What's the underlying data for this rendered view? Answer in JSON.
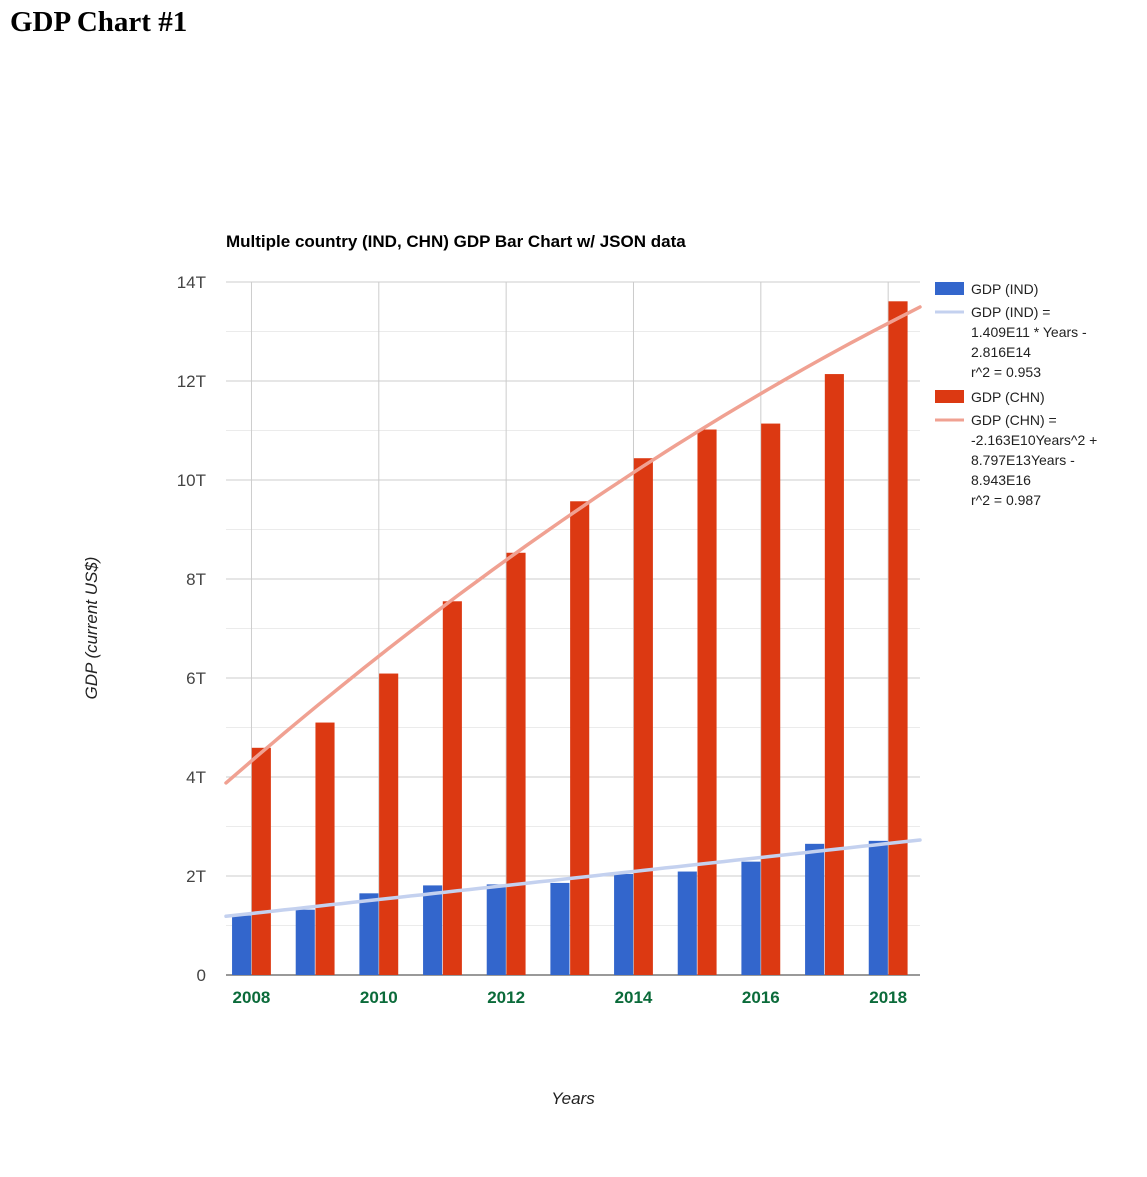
{
  "page": {
    "heading": "GDP Chart #1"
  },
  "chart_data": {
    "type": "bar",
    "title": "Multiple country (IND, CHN) GDP Bar Chart w/ JSON data",
    "xlabel": "Years",
    "ylabel": "GDP (current US$)",
    "x": [
      2008,
      2009,
      2010,
      2011,
      2012,
      2013,
      2014,
      2015,
      2016,
      2017,
      2018
    ],
    "xlim": [
      2007.6,
      2018.5
    ],
    "ylim": [
      0,
      14000000000000
    ],
    "y_ticks": [
      {
        "value": 0,
        "label": "0"
      },
      {
        "value": 2000000000000,
        "label": "2T"
      },
      {
        "value": 4000000000000,
        "label": "4T"
      },
      {
        "value": 6000000000000,
        "label": "6T"
      },
      {
        "value": 8000000000000,
        "label": "8T"
      },
      {
        "value": 10000000000000,
        "label": "10T"
      },
      {
        "value": 12000000000000,
        "label": "12T"
      },
      {
        "value": 14000000000000,
        "label": "14T"
      }
    ],
    "x_ticks": [
      {
        "value": 2008,
        "label": "2008"
      },
      {
        "value": 2010,
        "label": "2010"
      },
      {
        "value": 2012,
        "label": "2012"
      },
      {
        "value": 2014,
        "label": "2014"
      },
      {
        "value": 2016,
        "label": "2016"
      },
      {
        "value": 2018,
        "label": "2018"
      }
    ],
    "grid": true,
    "legend_position": "right",
    "series": [
      {
        "name": "GDP (IND)",
        "color": "#3366cc",
        "values": [
          1200000000000,
          1320000000000,
          1650000000000,
          1810000000000,
          1830000000000,
          1860000000000,
          2040000000000,
          2090000000000,
          2290000000000,
          2650000000000,
          2710000000000
        ],
        "trendline": {
          "kind": "linear",
          "color": "#c4d1ef",
          "label_lines": [
            "GDP (IND) =",
            "1.409E11 * Years -",
            "2.816E14",
            "r^2 = 0.953"
          ]
        }
      },
      {
        "name": "GDP (CHN)",
        "color": "#dc3912",
        "values": [
          4590000000000,
          5100000000000,
          6090000000000,
          7550000000000,
          8530000000000,
          9570000000000,
          10440000000000,
          11020000000000,
          11140000000000,
          12140000000000,
          13610000000000
        ],
        "trendline": {
          "kind": "quadratic",
          "color": "#f0a192",
          "label_lines": [
            "GDP (CHN) =",
            "-2.163E10Years^2 +",
            "8.797E13Years -",
            "8.943E16",
            "r^2 = 0.987"
          ]
        }
      }
    ],
    "colors": {
      "x_tick_text": "#0b6b3a",
      "y_tick_text": "#444444",
      "gridline": "#cccccc",
      "minor_gridline": "#ebebeb",
      "baseline": "#333333"
    }
  }
}
